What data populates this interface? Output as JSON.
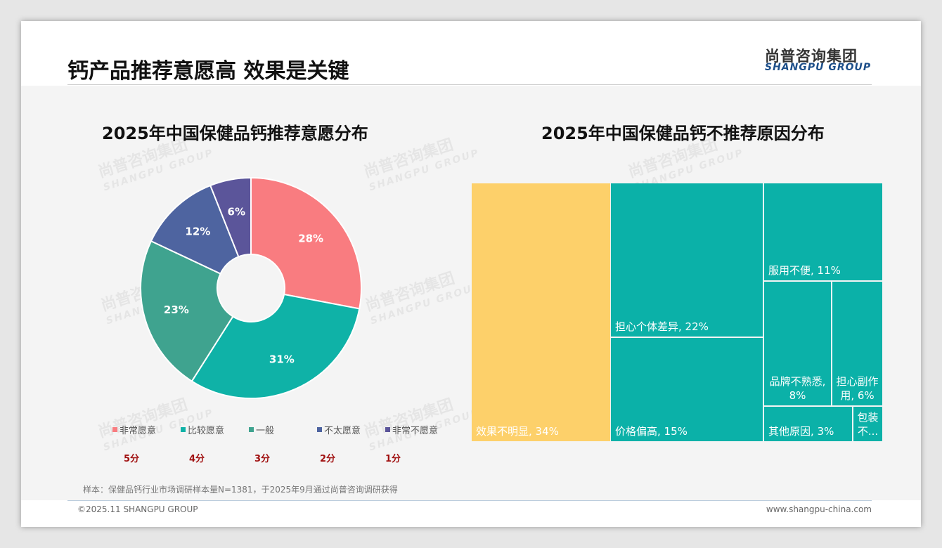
{
  "header": {
    "title": "钙产品推荐意愿高 效果是关键",
    "logo_cn": "尚普咨询集团",
    "logo_en": "SHANGPU GROUP"
  },
  "chart_data": [
    {
      "type": "pie",
      "title": "2025年中国保健品钙推荐意愿分布",
      "categories": [
        "非常愿意",
        "比较愿意",
        "一般",
        "不太愿意",
        "非常不愿意"
      ],
      "values": [
        28,
        31,
        23,
        12,
        6
      ],
      "labels": [
        "28%",
        "31%",
        "23%",
        "12%",
        "6%"
      ],
      "scores": [
        "5分",
        "4分",
        "3分",
        "2分",
        "1分"
      ],
      "colors": [
        "#F97C80",
        "#0FB2A7",
        "#3FA38F",
        "#4E64A0",
        "#5B559A"
      ],
      "legend": "bottom"
    },
    {
      "type": "treemap",
      "title": "2025年中国保健品钙不推荐原因分布",
      "items": [
        {
          "label": "效果不明显, 34%",
          "value": 34,
          "color": "#FDD06A"
        },
        {
          "label": "担心个体差异, 22%",
          "value": 22,
          "color": "#0BB1A8"
        },
        {
          "label": "价格偏高, 15%",
          "value": 15,
          "color": "#0BB1A8"
        },
        {
          "label": "服用不便, 11%",
          "value": 11,
          "color": "#0BB1A8"
        },
        {
          "label": "品牌不熟悉, 8%",
          "value": 8,
          "color": "#0BB1A8"
        },
        {
          "label": "担心副作用, 6%",
          "value": 6,
          "color": "#0BB1A8"
        },
        {
          "label": "其他原因, 3%",
          "value": 3,
          "color": "#0BB1A8"
        },
        {
          "label": "包装不...",
          "value": 1,
          "color": "#0BB1A8"
        }
      ]
    }
  ],
  "note": "样本：保健品钙行业市场调研样本量N=1381，于2025年9月通过尚普咨询调研获得",
  "footer": {
    "copyright": "©2025.11 SHANGPU GROUP",
    "website": "www.shangpu-china.com"
  }
}
